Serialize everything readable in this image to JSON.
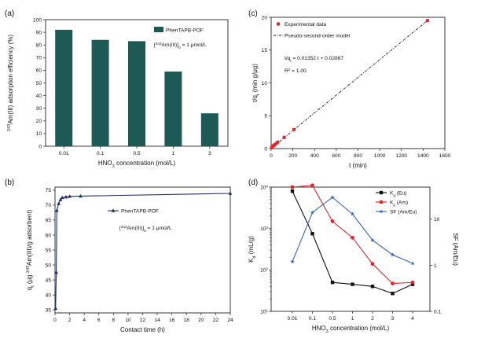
{
  "chart_data": [
    {
      "panel": "(a)",
      "type": "bar",
      "categories": [
        "0.01",
        "0.1",
        "0.5",
        "1",
        "3"
      ],
      "series": [
        {
          "name": "PhenTAPB-POF",
          "values": [
            92,
            84,
            83,
            59,
            26
          ]
        }
      ],
      "xlabel_main": "HNO",
      "xlabel_sub": "3",
      "xlabel_rest": " concentration (mol/L)",
      "ylabel_sup": "243",
      "ylabel_rest": "Am(III) adsorption efficiency (%)",
      "ylim": [
        0,
        100
      ],
      "yticks": [
        "0",
        "10",
        "20",
        "30",
        "40",
        "50",
        "60",
        "70",
        "80",
        "90",
        "100"
      ],
      "annotation": {
        "pre": "[",
        "sup": "243",
        "mid": "Am(III)]",
        "sub": "0",
        "post": " = 1 μmol/L"
      },
      "color": "#1e5a55"
    },
    {
      "panel": "(c)",
      "type": "scatter",
      "points": [
        [
          5,
          0.15
        ],
        [
          10,
          0.26
        ],
        [
          20,
          0.42
        ],
        [
          30,
          0.55
        ],
        [
          45,
          0.75
        ],
        [
          60,
          0.98
        ],
        [
          120,
          1.7
        ],
        [
          210,
          2.9
        ],
        [
          1440,
          19.5
        ]
      ],
      "fit_line": {
        "x": [
          0,
          1440
        ],
        "y": [
          0.02867,
          19.5
        ]
      },
      "legend": [
        "Experimental data",
        "Pseudo-second-order model"
      ],
      "equation": {
        "pre": "t/q",
        "sub": "t",
        "post": " = 0.01352 t + 0.02867"
      },
      "r2": {
        "pre": "R",
        "sup": "2",
        "post": " = 1.00"
      },
      "xlabel": "t (min)",
      "ylabel": {
        "pre": "t/q",
        "sub": "t",
        "post": " (min g/μg)"
      },
      "xlim": [
        0,
        1600
      ],
      "ylim": [
        0,
        20
      ],
      "xticks": [
        "0",
        "200",
        "400",
        "600",
        "800",
        "1000",
        "1200",
        "1400",
        "1600"
      ],
      "yticks": [
        "0",
        "5",
        "10",
        "15",
        "20"
      ],
      "color": "#e0252b"
    },
    {
      "panel": "(b)",
      "type": "line",
      "series": [
        {
          "name": "PhenTAPB-POF",
          "x": [
            0.08,
            0.17,
            0.25,
            0.5,
            0.75,
            1,
            1.5,
            2,
            3.5,
            24
          ],
          "y": [
            35.5,
            47.5,
            68.2,
            70.5,
            71.8,
            72.5,
            72.7,
            72.9,
            73,
            73.9
          ]
        }
      ],
      "annotation": {
        "pre": "[",
        "sup": "243",
        "mid": "Am(III)]",
        "sub": "0",
        "post": " = 1 μmol/L"
      },
      "xlabel": "Contact time (h)",
      "ylabel": {
        "pre": "q",
        "sub": "t",
        "mid": " (μg ",
        "sup": "243",
        "post": "Am(III)/g adsorbent)"
      },
      "xlim": [
        0,
        24
      ],
      "ylim": [
        34,
        76
      ],
      "xticks": [
        "0",
        "2",
        "4",
        "6",
        "8",
        "10",
        "12",
        "14",
        "16",
        "18",
        "20",
        "22",
        "24"
      ],
      "yticks": [
        "35",
        "40",
        "45",
        "50",
        "55",
        "60",
        "65",
        "70",
        "75"
      ],
      "color": "#1f2f6b"
    },
    {
      "panel": "(d)",
      "type": "line",
      "categories": [
        "0.01",
        "0.1",
        "0.5",
        "1",
        "2",
        "3",
        "4"
      ],
      "series": [
        {
          "name": "Kd (Eu)",
          "values": [
            8000,
            750,
            50,
            45,
            40,
            27,
            45
          ],
          "axis": "left",
          "color": "#111111",
          "marker": "square"
        },
        {
          "name": "Kd (Am)",
          "values": [
            10000,
            11000,
            1500,
            600,
            140,
            47,
            50
          ],
          "axis": "left",
          "color": "#e0252b",
          "marker": "circle"
        },
        {
          "name": "SF (Am/Eu)",
          "values": [
            1.2,
            14,
            30,
            13,
            3.5,
            1.7,
            1.1
          ],
          "axis": "right",
          "color": "#3a67b7",
          "marker": "star"
        }
      ],
      "legend": [
        {
          "main": "K",
          "sub": "d",
          "post": " (Eu)"
        },
        {
          "main": "K",
          "sub": "d",
          "post": " (Am)"
        },
        {
          "main": "SF (Am/Eu)",
          "sub": "",
          "post": ""
        }
      ],
      "xlabel_main": "HNO",
      "xlabel_sub": "3",
      "xlabel_rest": " concentration (mol/L)",
      "ylabel_left": {
        "main": "K",
        "sub": "d",
        "post": " (mL/g)"
      },
      "ylabel_right": "SF (Am/Eu)",
      "ylim_left": [
        10,
        10000
      ],
      "ylim_right": [
        0.1,
        50
      ],
      "left_ticks": [
        {
          "exp": 1
        },
        {
          "exp": 2
        },
        {
          "exp": 3
        },
        {
          "exp": 4
        }
      ],
      "right_ticks": [
        "0.1",
        "1",
        "10"
      ],
      "log_scale": true
    }
  ]
}
